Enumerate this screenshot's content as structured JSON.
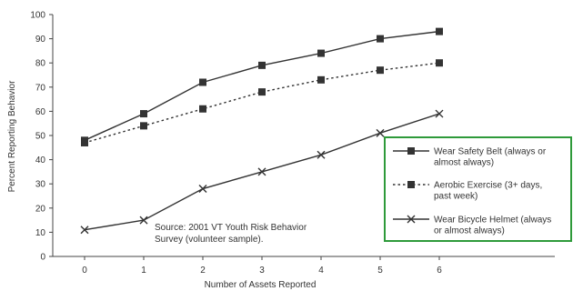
{
  "chart_data": {
    "type": "line",
    "xlabel": "Number of Assets Reported",
    "ylabel": "Percent Reporting Behavior",
    "x": [
      0,
      1,
      2,
      3,
      4,
      5,
      6
    ],
    "xlim": [
      0,
      6
    ],
    "ylim": [
      0,
      100
    ],
    "yticks": [
      0,
      10,
      20,
      30,
      40,
      50,
      60,
      70,
      80,
      90,
      100
    ],
    "grid": false,
    "legend_placement": "right",
    "series": [
      {
        "name_lines": [
          "Wear Safety Belt (always or",
          "almost always)"
        ],
        "values": [
          48,
          59,
          72,
          79,
          84,
          90,
          93
        ],
        "marker": "square",
        "line_style": "solid",
        "color": "#333333"
      },
      {
        "name_lines": [
          "Aerobic Exercise (3+ days,",
          "past week)"
        ],
        "values": [
          47,
          54,
          61,
          68,
          73,
          77,
          80
        ],
        "marker": "square",
        "line_style": "dotted",
        "color": "#333333"
      },
      {
        "name_lines": [
          "Wear Bicycle Helmet (always",
          "or almost always)"
        ],
        "values": [
          11,
          15,
          28,
          35,
          42,
          51,
          59
        ],
        "marker": "x",
        "line_style": "solid",
        "color": "#333333"
      }
    ],
    "annotation_lines": [
      "Source: 2001 VT Youth Risk Behavior",
      "Survey (volunteer sample)."
    ],
    "legend_border_color": "#2e9a3a"
  }
}
